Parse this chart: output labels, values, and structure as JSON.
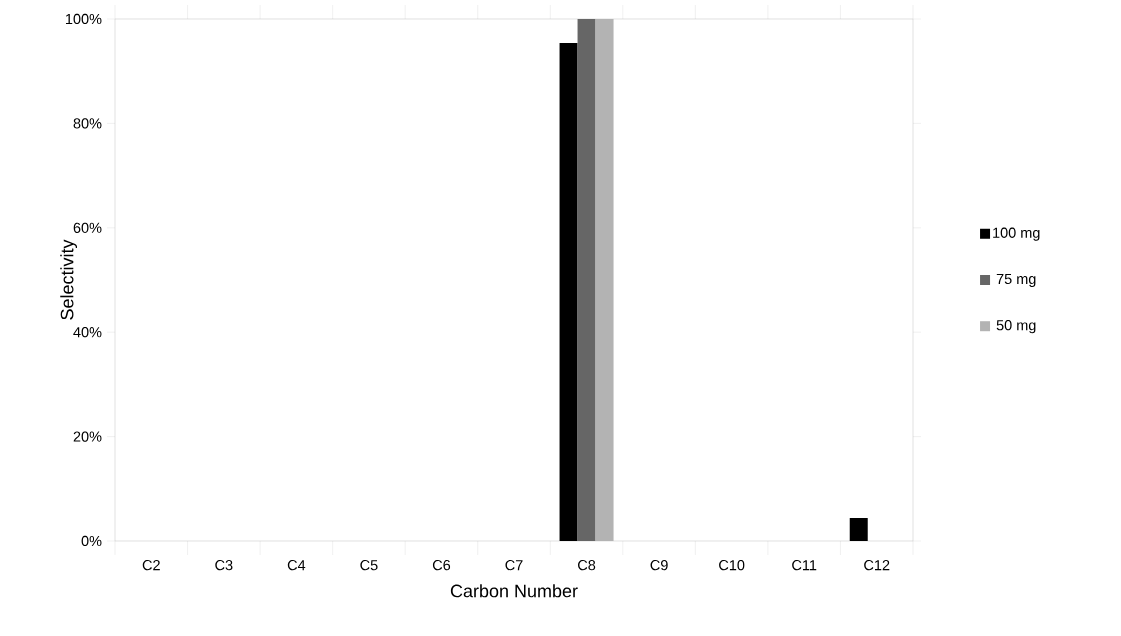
{
  "chart_data": {
    "type": "bar",
    "xlabel": "Carbon Number",
    "ylabel": "Selectivity",
    "categories": [
      "C2",
      "C3",
      "C4",
      "C5",
      "C6",
      "C7",
      "C8",
      "C9",
      "C10",
      "C11",
      "C12"
    ],
    "series": [
      {
        "name": "100 mg",
        "color": "#000000",
        "values": [
          0,
          0,
          0,
          0,
          0,
          0,
          95.4,
          0,
          0,
          0,
          4.4
        ]
      },
      {
        "name": "75 mg",
        "color": "#666666",
        "values": [
          0,
          0,
          0,
          0,
          0,
          0,
          100,
          0,
          0,
          0,
          0
        ]
      },
      {
        "name": "50 mg",
        "color": "#b3b3b3",
        "values": [
          0,
          0,
          0,
          0,
          0,
          0,
          100,
          0,
          0,
          0,
          0
        ]
      }
    ],
    "ylim": [
      0,
      100
    ],
    "yticks": [
      {
        "value": 0,
        "label": "0%"
      },
      {
        "value": 20,
        "label": "20%"
      },
      {
        "value": 40,
        "label": "40%"
      },
      {
        "value": 60,
        "label": "60%"
      },
      {
        "value": 80,
        "label": "80%"
      },
      {
        "value": 100,
        "label": "100%"
      }
    ],
    "grid": false,
    "legend": "right"
  }
}
